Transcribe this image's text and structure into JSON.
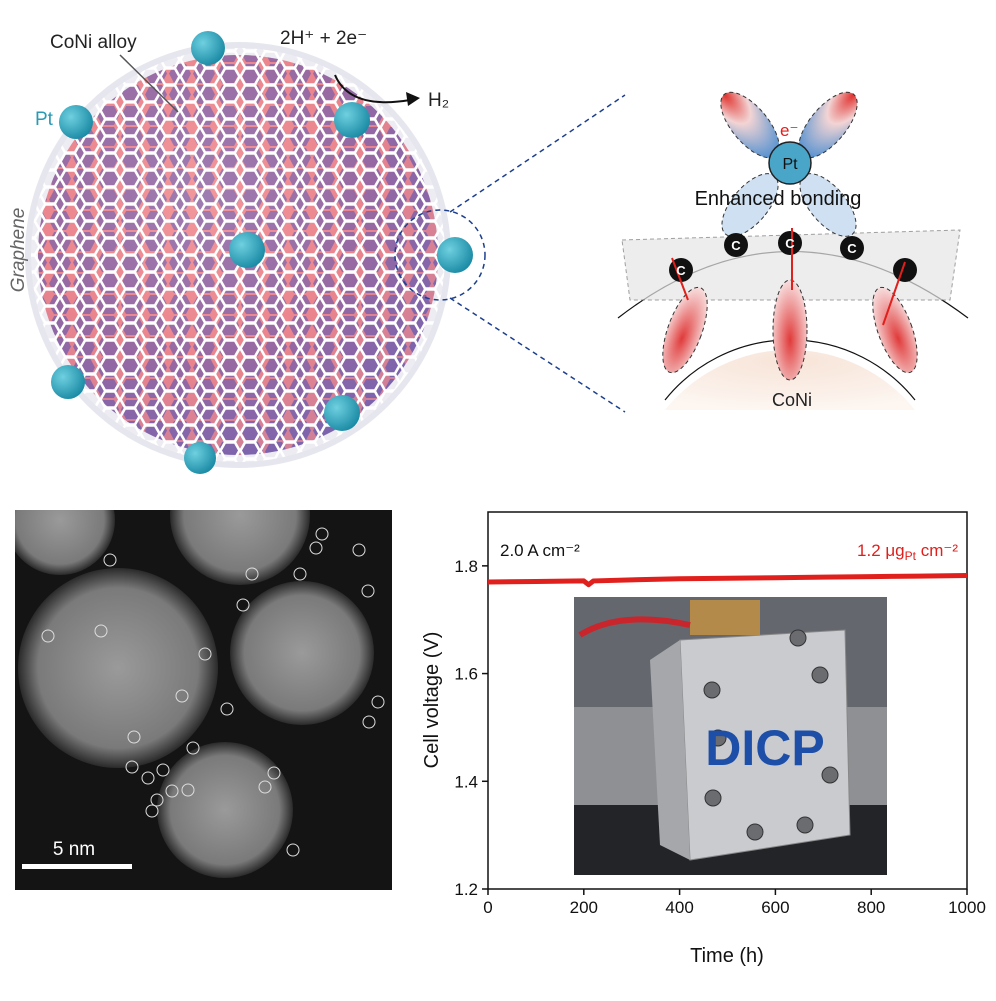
{
  "diagram": {
    "alloy_label": "CoNi alloy",
    "reaction": "2H⁺ + 2e⁻",
    "product": "H₂",
    "pt_label": "Pt",
    "graphene_label": "Graphene",
    "electron_label": "e⁻",
    "center_atom": "Pt",
    "bonding_label": "Enhanced bonding",
    "carbon_atoms": [
      "C",
      "C",
      "C",
      "C"
    ],
    "core_label": "CoNi"
  },
  "micrograph": {
    "scale_label": "5 nm"
  },
  "chart_data": {
    "type": "line",
    "x_label": "Time (h)",
    "y_label": "Cell voltage (V)",
    "x": [
      0,
      100,
      200,
      210,
      220,
      300,
      400,
      500,
      600,
      700,
      800,
      900,
      1000
    ],
    "values": [
      1.77,
      1.771,
      1.772,
      1.765,
      1.772,
      1.774,
      1.776,
      1.777,
      1.778,
      1.779,
      1.78,
      1.781,
      1.782
    ],
    "color": "#e0201c",
    "xlim": [
      0,
      1000
    ],
    "xticks": [
      0,
      200,
      400,
      600,
      800,
      1000
    ],
    "ylim": [
      1.2,
      1.9
    ],
    "yticks": [
      1.2,
      1.4,
      1.6,
      1.8
    ],
    "annotation_left": "2.0 A cm⁻²",
    "annotation_right": {
      "main": "1.2 μg",
      "sub": "Pt",
      "tail": " cm⁻²"
    },
    "inset_label": "DICP"
  }
}
